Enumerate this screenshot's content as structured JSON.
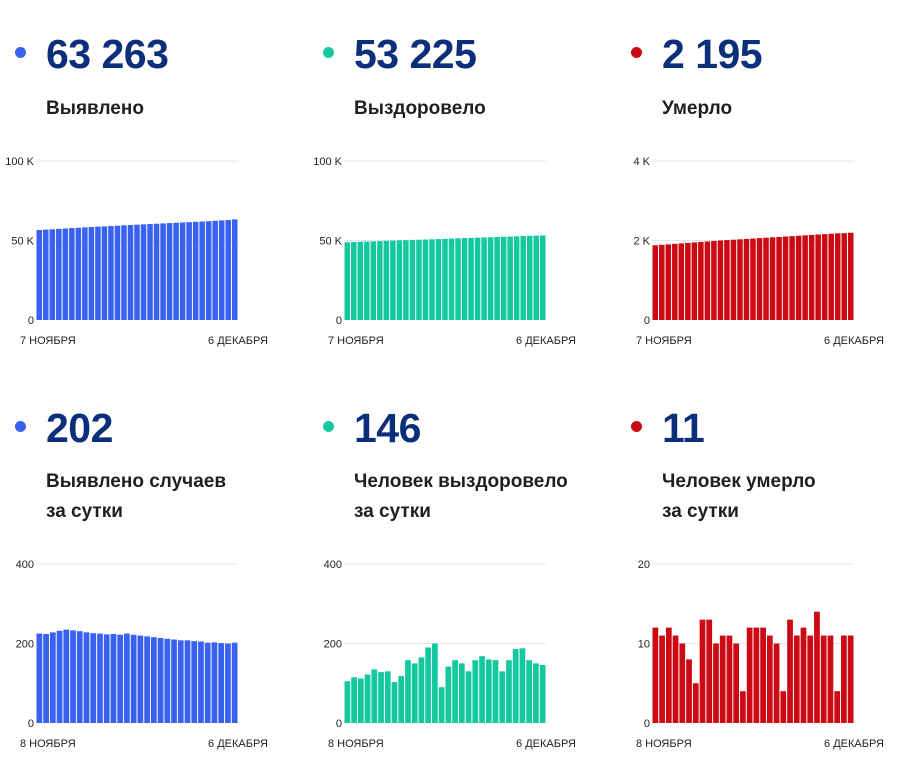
{
  "panels": [
    {
      "number": "63 263",
      "label_lines": [
        "Выявлено"
      ],
      "color": "#3a62f2",
      "chart_data": {
        "type": "bar",
        "title": "Выявлено",
        "ylim": [
          0,
          100000
        ],
        "yticks": [
          {
            "v": 0,
            "label": "0"
          },
          {
            "v": 50000,
            "label": "50 K"
          },
          {
            "v": 100000,
            "label": "100 K"
          }
        ],
        "x_start_label": "7 НОЯБРЯ",
        "x_end_label": "6 ДЕКАБРЯ",
        "values": [
          56600,
          56850,
          57050,
          57300,
          57550,
          57800,
          58000,
          58250,
          58450,
          58700,
          58900,
          59100,
          59300,
          59550,
          59750,
          59950,
          60150,
          60350,
          60550,
          60750,
          60950,
          61150,
          61350,
          61550,
          61750,
          61950,
          62150,
          62400,
          62650,
          62850,
          63263
        ]
      }
    },
    {
      "number": "53 225",
      "label_lines": [
        "Выздоровело"
      ],
      "color": "#14c9a0",
      "chart_data": {
        "type": "bar",
        "title": "Выздоровело",
        "ylim": [
          0,
          100000
        ],
        "yticks": [
          {
            "v": 0,
            "label": "0"
          },
          {
            "v": 50000,
            "label": "50 K"
          },
          {
            "v": 100000,
            "label": "100 K"
          }
        ],
        "x_start_label": "7 НОЯБРЯ",
        "x_end_label": "6 ДЕКАБРЯ",
        "values": [
          48900,
          49050,
          49200,
          49350,
          49500,
          49650,
          49800,
          49950,
          50100,
          50250,
          50400,
          50500,
          50600,
          50750,
          50900,
          51050,
          51200,
          51350,
          51500,
          51650,
          51800,
          51950,
          52050,
          52200,
          52350,
          52500,
          52650,
          52800,
          52950,
          53080,
          53225
        ]
      }
    },
    {
      "number": "2 195",
      "label_lines": [
        "Умерло"
      ],
      "color": "#cc0a14",
      "chart_data": {
        "type": "bar",
        "title": "Умерло",
        "ylim": [
          0,
          4000
        ],
        "yticks": [
          {
            "v": 0,
            "label": "0"
          },
          {
            "v": 2000,
            "label": "2 K"
          },
          {
            "v": 4000,
            "label": "4 K"
          }
        ],
        "x_start_label": "7 НОЯБРЯ",
        "x_end_label": "6 ДЕКАБРЯ",
        "values": [
          1880,
          1892,
          1904,
          1916,
          1928,
          1940,
          1952,
          1964,
          1976,
          1988,
          2000,
          2010,
          2020,
          2030,
          2040,
          2050,
          2060,
          2070,
          2080,
          2090,
          2100,
          2110,
          2120,
          2130,
          2140,
          2150,
          2160,
          2170,
          2180,
          2184,
          2195
        ]
      }
    },
    {
      "number": "202",
      "label_lines": [
        "Выявлено случаев",
        "за сутки"
      ],
      "color": "#3a62f2",
      "chart_data": {
        "type": "bar",
        "title": "Выявлено случаев за сутки",
        "ylim": [
          0,
          400
        ],
        "yticks": [
          {
            "v": 0,
            "label": "0"
          },
          {
            "v": 200,
            "label": "200"
          },
          {
            "v": 400,
            "label": "400"
          }
        ],
        "x_start_label": "8 НОЯБРЯ",
        "x_end_label": "6 ДЕКАБРЯ",
        "values": [
          225,
          224,
          228,
          232,
          235,
          233,
          231,
          228,
          226,
          225,
          223,
          224,
          222,
          225,
          222,
          220,
          218,
          216,
          214,
          212,
          210,
          208,
          208,
          206,
          205,
          202,
          203,
          201,
          200,
          202
        ]
      }
    },
    {
      "number": "146",
      "label_lines": [
        "Человек выздоровело",
        "за сутки"
      ],
      "color": "#14c9a0",
      "chart_data": {
        "type": "bar",
        "title": "Человек выздоровело за сутки",
        "ylim": [
          0,
          400
        ],
        "yticks": [
          {
            "v": 0,
            "label": "0"
          },
          {
            "v": 200,
            "label": "200"
          },
          {
            "v": 400,
            "label": "400"
          }
        ],
        "x_start_label": "8 НОЯБРЯ",
        "x_end_label": "6 ДЕКАБРЯ",
        "values": [
          105,
          115,
          112,
          122,
          135,
          128,
          130,
          103,
          118,
          158,
          150,
          165,
          190,
          200,
          90,
          142,
          158,
          150,
          130,
          158,
          168,
          160,
          158,
          130,
          158,
          186,
          188,
          158,
          150,
          146
        ]
      }
    },
    {
      "number": "11",
      "label_lines": [
        "Человек умерло",
        "за сутки"
      ],
      "color": "#cc0a14",
      "chart_data": {
        "type": "bar",
        "title": "Человек умерло за сутки",
        "ylim": [
          0,
          20
        ],
        "yticks": [
          {
            "v": 0,
            "label": "0"
          },
          {
            "v": 10,
            "label": "10"
          },
          {
            "v": 20,
            "label": "20"
          }
        ],
        "x_start_label": "8 НОЯБРЯ",
        "x_end_label": "6 ДЕКАБРЯ",
        "values": [
          12,
          11,
          12,
          11,
          10,
          8,
          5,
          13,
          13,
          10,
          11,
          11,
          10,
          4,
          12,
          12,
          12,
          11,
          10,
          4,
          13,
          11,
          12,
          11,
          14,
          11,
          11,
          4,
          11,
          11
        ]
      }
    }
  ]
}
